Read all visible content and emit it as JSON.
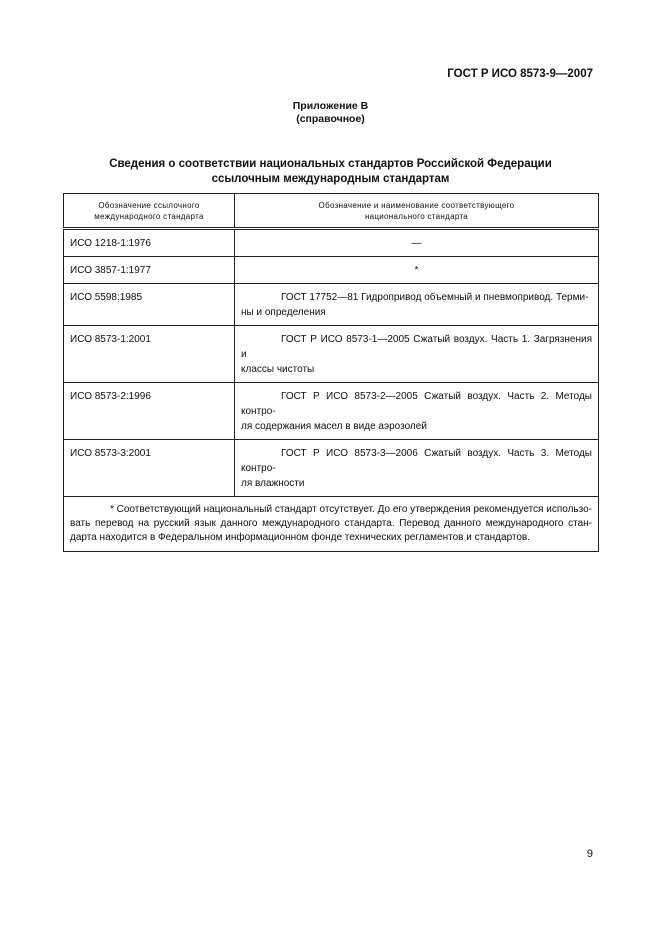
{
  "header": {
    "standard": "ГОСТ Р ИСО 8573-9—2007"
  },
  "appendix": {
    "title": "Приложение В",
    "subtitle": "(справочное)"
  },
  "table_title": [
    "Сведения о соответствии национальных стандартов Российской Федерации",
    "ссылочным международным стандартам"
  ],
  "table": {
    "headers": [
      [
        "Обозначение ссылочного",
        "международного стандарта"
      ],
      [
        "Обозначение и наименование соответствующего",
        "национального стандарта"
      ]
    ],
    "rows": [
      {
        "iso": "ИСО 1218-1:1976",
        "national": [
          "—"
        ],
        "center": true
      },
      {
        "iso": "ИСО 3857-1:1977",
        "national": [
          "*"
        ],
        "center": true
      },
      {
        "iso": "ИСО 5598:1985",
        "national": [
          "ГОСТ 17752—81 Гидропривод объемный и пневмопривод. Терми-",
          "ны и определения"
        ]
      },
      {
        "iso": "ИСО 8573-1:2001",
        "national": [
          "ГОСТ Р ИСО 8573-1—2005 Сжатый воздух. Часть 1. Загрязнения и",
          "классы чистоты"
        ]
      },
      {
        "iso": "ИСО 8573-2:1996",
        "national": [
          "ГОСТ Р ИСО 8573-2—2005 Сжатый воздух. Часть 2. Методы контро-",
          "ля содержания масел в виде аэрозолей"
        ]
      },
      {
        "iso": "ИСО 8573-3:2001",
        "national": [
          "ГОСТ Р ИСО 8573-3—2006 Сжатый воздух. Часть 3. Методы контро-",
          "ля влажности"
        ]
      }
    ],
    "footnote": [
      "* Соответствующий национальный стандарт отсутствует. До его утверждения рекомендуется использо-",
      "вать перевод на русский язык данного международного стандарта. Перевод данного международного стан-",
      "дарта находится в Федеральном информационном фонде технических регламентов и стандартов."
    ]
  },
  "page_number": "9"
}
